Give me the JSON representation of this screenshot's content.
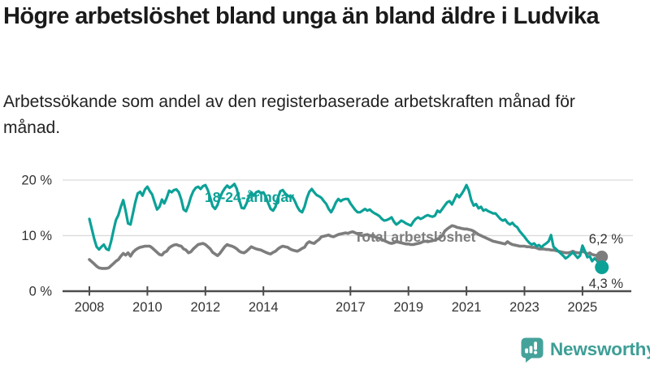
{
  "header": {
    "title": "Högre arbetslöshet bland unga än bland äldre i Ludvika",
    "subtitle": "Arbetssökande som andel av den registerbaserade arbetskraften månad för månad."
  },
  "branding": {
    "logo_text": "Newsworthy",
    "logo_color": "#3d9e96",
    "logo_icon": "speech-bubble-bar-chart-icon",
    "logo_icon_color": "#45a29a"
  },
  "chart_data": {
    "type": "line",
    "title": "Högre arbetslöshet bland unga än bland äldre i Ludvika",
    "subtitle": "Arbetssökande som andel av den registerbaserade arbetskraften månad för månad.",
    "x_start_year": 2008,
    "x_start_month": 1,
    "x_end_year": 2025,
    "x_end_month": 9,
    "points_per_year": 12,
    "x_ticks": [
      2008,
      2010,
      2012,
      2014,
      2017,
      2019,
      2021,
      2023,
      2025
    ],
    "y_ticks": [
      {
        "value": 0,
        "label": "0 %"
      },
      {
        "value": 10,
        "label": "10 %"
      },
      {
        "value": 20,
        "label": "20 %"
      }
    ],
    "ylim": [
      0,
      21.5
    ],
    "grid": "horizontal",
    "legend_position": "inline-labels",
    "colors": {
      "grid": "#d9d9d9",
      "axis": "#4d4d4d",
      "tick_text": "#333333"
    },
    "series": [
      {
        "name": "18-24-åringar",
        "color": "#0ca197",
        "end_label": "4,3 %",
        "last_value": 4.3,
        "values": [
          13.0,
          11.2,
          9.4,
          8.0,
          7.5,
          8.0,
          8.4,
          7.6,
          7.4,
          9.0,
          11.0,
          12.8,
          13.7,
          15.2,
          16.4,
          14.5,
          12.2,
          12.0,
          14.0,
          16.0,
          17.6,
          17.9,
          17.2,
          18.3,
          18.8,
          18.0,
          17.4,
          16.0,
          14.7,
          15.2,
          16.5,
          15.8,
          16.8,
          18.1,
          17.8,
          18.2,
          18.3,
          17.8,
          16.5,
          14.7,
          14.4,
          15.5,
          17.0,
          18.0,
          18.6,
          18.8,
          18.4,
          18.9,
          19.1,
          18.2,
          16.8,
          15.3,
          14.8,
          15.5,
          16.8,
          17.8,
          18.5,
          19.0,
          18.6,
          18.9,
          19.3,
          18.4,
          16.4,
          15.0,
          14.9,
          15.8,
          17.0,
          17.8,
          17.2,
          17.8,
          18.0,
          17.6,
          17.8,
          17.0,
          15.8,
          14.8,
          14.5,
          15.2,
          16.8,
          18.0,
          18.2,
          17.6,
          17.2,
          17.0,
          17.0,
          16.2,
          15.2,
          14.5,
          14.2,
          15.2,
          16.8,
          17.9,
          18.4,
          17.8,
          17.3,
          17.1,
          16.8,
          16.2,
          15.7,
          14.8,
          14.2,
          15.0,
          16.0,
          16.6,
          16.2,
          16.5,
          16.6,
          16.6,
          15.8,
          15.2,
          14.6,
          14.2,
          14.2,
          14.5,
          14.8,
          14.5,
          14.7,
          14.3,
          14.0,
          13.8,
          13.5,
          13.0,
          12.7,
          12.8,
          13.0,
          13.3,
          12.5,
          12.0,
          12.3,
          12.7,
          12.5,
          12.2,
          12.0,
          11.8,
          12.5,
          13.0,
          13.3,
          13.0,
          13.2,
          13.5,
          13.7,
          13.5,
          13.4,
          13.6,
          14.5,
          14.2,
          14.8,
          15.4,
          16.0,
          16.2,
          15.6,
          16.5,
          17.4,
          16.9,
          17.5,
          18.2,
          19.1,
          18.1,
          16.4,
          15.4,
          15.7,
          14.9,
          15.2,
          14.5,
          14.7,
          14.4,
          14.2,
          14.0,
          14.0,
          13.5,
          13.0,
          12.7,
          12.9,
          12.3,
          12.0,
          12.3,
          11.8,
          11.5,
          10.8,
          10.3,
          9.8,
          9.2,
          8.7,
          8.4,
          8.6,
          8.1,
          8.3,
          7.9,
          8.3,
          8.6,
          9.0,
          10.1,
          8.0,
          7.6,
          7.2,
          6.8,
          6.4,
          5.9,
          6.2,
          6.6,
          7.0,
          6.5,
          6.0,
          6.4,
          8.2,
          7.2,
          6.1,
          6.3,
          5.4,
          5.9,
          5.5,
          4.8,
          4.3
        ]
      },
      {
        "name": "Total arbetslöshet",
        "color": "#7d7d7d",
        "end_label": "6,2 %",
        "last_value": 6.2,
        "values": [
          5.7,
          5.3,
          4.9,
          4.5,
          4.2,
          4.1,
          4.1,
          4.1,
          4.2,
          4.6,
          5.0,
          5.4,
          5.7,
          6.3,
          6.8,
          6.5,
          6.9,
          6.3,
          7.0,
          7.4,
          7.7,
          7.9,
          8.0,
          8.1,
          8.1,
          8.1,
          7.8,
          7.4,
          7.0,
          6.6,
          6.5,
          7.0,
          7.2,
          7.8,
          8.1,
          8.3,
          8.4,
          8.2,
          8.1,
          7.6,
          7.4,
          6.9,
          7.1,
          7.6,
          8.0,
          8.4,
          8.5,
          8.6,
          8.4,
          8.0,
          7.6,
          7.0,
          6.7,
          6.4,
          6.8,
          7.4,
          8.0,
          8.4,
          8.2,
          8.1,
          7.9,
          7.6,
          7.2,
          7.0,
          6.9,
          7.2,
          7.6,
          8.0,
          7.8,
          7.6,
          7.5,
          7.4,
          7.2,
          7.0,
          6.8,
          6.7,
          7.0,
          7.2,
          7.6,
          7.9,
          8.1,
          8.0,
          7.9,
          7.6,
          7.4,
          7.3,
          7.2,
          7.4,
          7.7,
          7.9,
          8.6,
          8.9,
          8.7,
          8.6,
          9.0,
          9.3,
          9.8,
          9.9,
          10.0,
          10.1,
          9.9,
          9.8,
          10.0,
          10.2,
          10.3,
          10.4,
          10.5,
          10.4,
          10.6,
          10.7,
          10.5,
          10.3,
          10.1,
          10.0,
          10.1,
          10.2,
          10.0,
          9.9,
          9.8,
          9.6,
          9.5,
          9.3,
          9.1,
          8.9,
          8.7,
          8.6,
          8.7,
          8.9,
          8.8,
          8.7,
          8.6,
          8.5,
          8.5,
          8.4,
          8.4,
          8.5,
          8.6,
          8.7,
          8.9,
          9.0,
          8.9,
          9.0,
          9.1,
          9.2,
          9.4,
          9.6,
          10.0,
          10.8,
          11.2,
          11.5,
          11.8,
          11.7,
          11.5,
          11.4,
          11.3,
          11.2,
          11.2,
          11.1,
          11.0,
          10.8,
          10.5,
          10.2,
          10.0,
          9.8,
          9.6,
          9.4,
          9.2,
          9.0,
          8.9,
          8.8,
          8.7,
          8.6,
          8.5,
          8.9,
          8.6,
          8.4,
          8.3,
          8.2,
          8.1,
          8.1,
          8.1,
          8.0,
          8.0,
          7.9,
          7.9,
          7.8,
          7.6,
          7.6,
          7.6,
          7.5,
          7.5,
          7.4,
          7.4,
          7.3,
          7.2,
          7.1,
          7.0,
          6.9,
          6.9,
          7.0,
          7.2,
          7.0,
          6.9,
          6.9,
          7.2,
          7.0,
          6.7,
          6.9,
          6.6,
          6.5,
          6.4,
          6.3,
          6.2
        ]
      }
    ]
  }
}
